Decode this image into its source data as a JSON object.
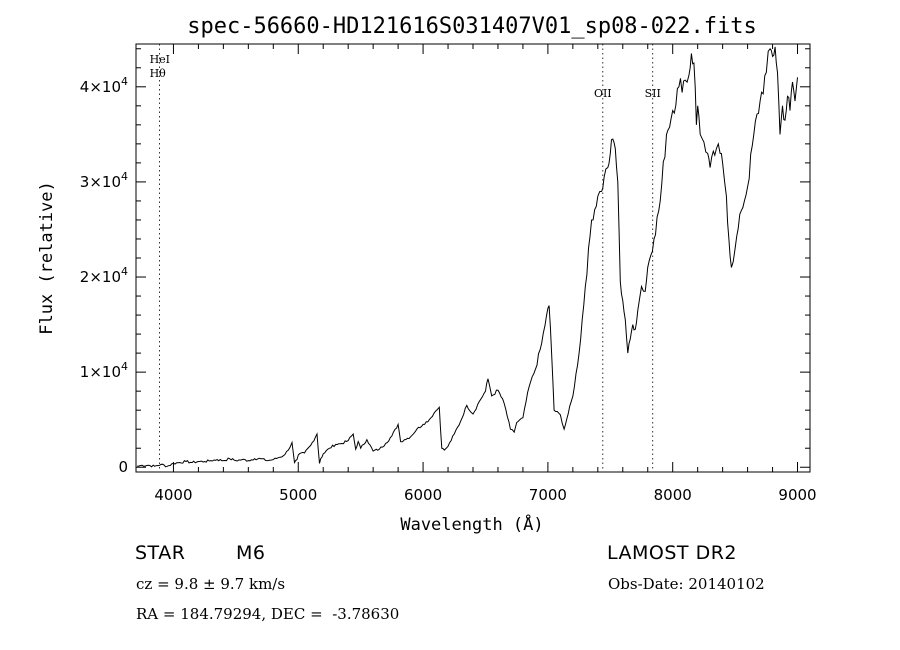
{
  "chart_data": {
    "type": "line",
    "title": "spec-56660-HD121616S031407V01_sp08-022.fits",
    "xlabel": "Wavelength (Å)",
    "ylabel": "Flux (relative)",
    "xlim": [
      3700,
      9100
    ],
    "ylim": [
      -500,
      44500
    ],
    "x_ticks": [
      4000,
      5000,
      6000,
      7000,
      8000,
      9000
    ],
    "y_ticks": [
      {
        "value": 0,
        "mant": "0",
        "exp": ""
      },
      {
        "value": 10000,
        "mant": "1×10",
        "exp": "4"
      },
      {
        "value": 20000,
        "mant": "2×10",
        "exp": "4"
      },
      {
        "value": 30000,
        "mant": "3×10",
        "exp": "4"
      },
      {
        "value": 40000,
        "mant": "4×10",
        "exp": "4"
      }
    ],
    "grid": false,
    "lines": [
      {
        "x": 3889,
        "labels": [
          "HeI",
          "Hθ"
        ]
      },
      {
        "x": 7440,
        "labels": [
          "OII"
        ]
      },
      {
        "x": 7840,
        "labels": [
          "SII"
        ]
      }
    ],
    "series": [
      {
        "x": [
          3710,
          3750,
          3800,
          3850,
          3900,
          3950,
          4000,
          4050,
          4100,
          4150,
          4200,
          4250,
          4300,
          4350,
          4400,
          4450,
          4500,
          4550,
          4600,
          4650,
          4700,
          4750,
          4800,
          4840,
          4880,
          4920,
          4950,
          4970,
          4990,
          5000,
          5050,
          5100,
          5150,
          5170,
          5180,
          5200,
          5250,
          5300,
          5350,
          5400,
          5440,
          5460,
          5480,
          5500,
          5550,
          5600,
          5650,
          5700,
          5750,
          5800,
          5820,
          5850,
          5900,
          5950,
          6000,
          6050,
          6100,
          6130,
          6150,
          6170,
          6200,
          6250,
          6300,
          6350,
          6400,
          6450,
          6500,
          6520,
          6550,
          6600,
          6650,
          6700,
          6730,
          6750,
          6800,
          6850,
          6900,
          6950,
          6990,
          7010,
          7030,
          7050,
          7100,
          7130,
          7150,
          7200,
          7250,
          7300,
          7350,
          7400,
          7430,
          7450,
          7480,
          7500,
          7520,
          7540,
          7560,
          7580,
          7600,
          7620,
          7640,
          7660,
          7680,
          7700,
          7720,
          7750,
          7780,
          7800,
          7850,
          7900,
          7950,
          8000,
          8050,
          8100,
          8130,
          8150,
          8170,
          8180,
          8190,
          8200,
          8220,
          8250,
          8280,
          8300,
          8350,
          8380,
          8400,
          8430,
          8450,
          8470,
          8500,
          8550,
          8600,
          8650,
          8700,
          8750,
          8780,
          8800,
          8820,
          8840,
          8860,
          8880,
          8900,
          8920,
          8940,
          8960,
          8980,
          9000
        ],
        "y": [
          100,
          200,
          200,
          100,
          300,
          100,
          400,
          500,
          600,
          500,
          600,
          600,
          700,
          800,
          700,
          900,
          700,
          800,
          700,
          900,
          900,
          700,
          800,
          1000,
          1200,
          1800,
          2600,
          500,
          800,
          1300,
          1500,
          2300,
          3500,
          400,
          900,
          1400,
          2000,
          2400,
          2500,
          2800,
          3500,
          1900,
          2700,
          2000,
          2900,
          1700,
          1900,
          2500,
          3300,
          4500,
          2700,
          2900,
          3200,
          4000,
          4500,
          5000,
          5900,
          6300,
          2000,
          1800,
          2200,
          3500,
          4800,
          6500,
          5600,
          6900,
          8000,
          9300,
          7500,
          8100,
          6700,
          4000,
          3700,
          4700,
          5200,
          8500,
          10300,
          13000,
          16000,
          17000,
          12000,
          6000,
          5500,
          4000,
          5000,
          7500,
          12000,
          19000,
          26000,
          28500,
          29000,
          30500,
          31500,
          33000,
          34500,
          33500,
          30000,
          19500,
          17500,
          15500,
          12000,
          13500,
          15000,
          14500,
          16500,
          19000,
          18500,
          21000,
          24000,
          28000,
          35000,
          37500,
          40000,
          40700,
          41200,
          43500,
          42500,
          40000,
          36000,
          38000,
          35000,
          34200,
          33000,
          31500,
          33500,
          33000,
          32000,
          28500,
          24000,
          21000,
          23000,
          27000,
          29500,
          35000,
          38500,
          41500,
          44000,
          43200,
          44200,
          41500,
          35000,
          38000,
          36500,
          39000,
          37500,
          40500,
          38500,
          41000
        ]
      }
    ]
  },
  "info": {
    "object_type": "STAR",
    "subclass": "M6",
    "survey": "LAMOST DR2",
    "cz": "cz = 9.8 ± 9.7 km/s",
    "coords": "RA = 184.79294, DEC =  -3.78630",
    "obs_date": "Obs-Date: 20140102"
  }
}
